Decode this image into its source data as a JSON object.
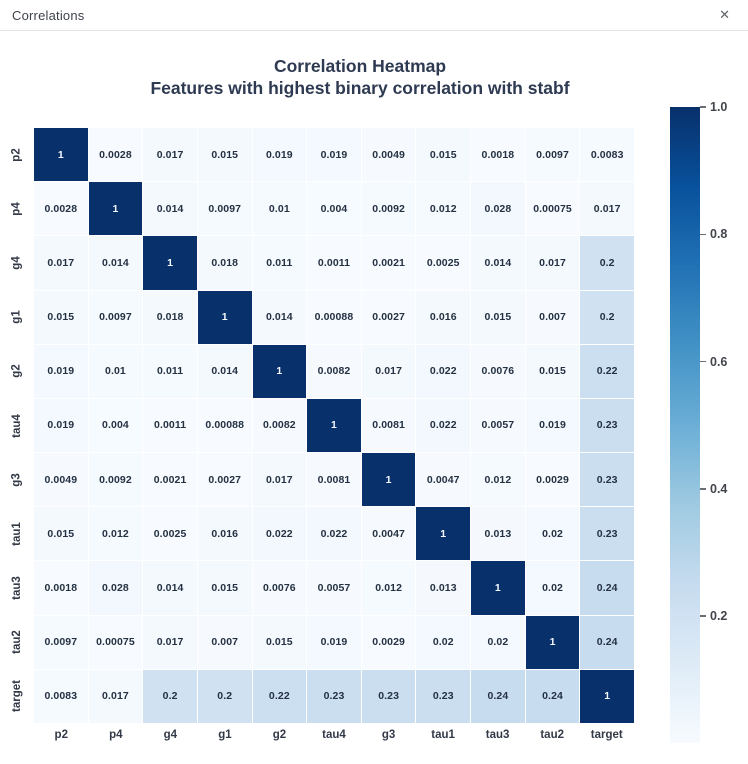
{
  "window": {
    "title": "Correlations",
    "close_glyph": "✕"
  },
  "chart_data": {
    "type": "heatmap",
    "title": "Correlation Heatmap",
    "subtitle": "Features with highest binary correlation with stabf",
    "labels": [
      "p2",
      "p4",
      "g4",
      "g1",
      "g2",
      "tau4",
      "g3",
      "tau1",
      "tau3",
      "tau2",
      "target"
    ],
    "matrix": [
      [
        "1",
        "0.0028",
        "0.017",
        "0.015",
        "0.019",
        "0.019",
        "0.0049",
        "0.015",
        "0.0018",
        "0.0097",
        "0.0083"
      ],
      [
        "0.0028",
        "1",
        "0.014",
        "0.0097",
        "0.01",
        "0.004",
        "0.0092",
        "0.012",
        "0.028",
        "0.00075",
        "0.017"
      ],
      [
        "0.017",
        "0.014",
        "1",
        "0.018",
        "0.011",
        "0.0011",
        "0.0021",
        "0.0025",
        "0.014",
        "0.017",
        "0.2"
      ],
      [
        "0.015",
        "0.0097",
        "0.018",
        "1",
        "0.014",
        "0.00088",
        "0.0027",
        "0.016",
        "0.015",
        "0.007",
        "0.2"
      ],
      [
        "0.019",
        "0.01",
        "0.011",
        "0.014",
        "1",
        "0.0082",
        "0.017",
        "0.022",
        "0.0076",
        "0.015",
        "0.22"
      ],
      [
        "0.019",
        "0.004",
        "0.0011",
        "0.00088",
        "0.0082",
        "1",
        "0.0081",
        "0.022",
        "0.0057",
        "0.019",
        "0.23"
      ],
      [
        "0.0049",
        "0.0092",
        "0.0021",
        "0.0027",
        "0.017",
        "0.0081",
        "1",
        "0.0047",
        "0.012",
        "0.0029",
        "0.23"
      ],
      [
        "0.015",
        "0.012",
        "0.0025",
        "0.016",
        "0.022",
        "0.022",
        "0.0047",
        "1",
        "0.013",
        "0.02",
        "0.23"
      ],
      [
        "0.0018",
        "0.028",
        "0.014",
        "0.015",
        "0.0076",
        "0.0057",
        "0.012",
        "0.013",
        "1",
        "0.02",
        "0.24"
      ],
      [
        "0.0097",
        "0.00075",
        "0.017",
        "0.007",
        "0.015",
        "0.019",
        "0.0029",
        "0.02",
        "0.02",
        "1",
        "0.24"
      ],
      [
        "0.0083",
        "0.017",
        "0.2",
        "0.2",
        "0.22",
        "0.23",
        "0.23",
        "0.23",
        "0.24",
        "0.24",
        "1"
      ]
    ],
    "colorbar": {
      "ticks": [
        "1.0",
        "0.8",
        "0.6",
        "0.4",
        "0.2"
      ],
      "vmin": 0.00075,
      "vmax": 1.0,
      "colorscale_name": "Blues",
      "gradient_low_to_high": [
        "#f7fbff",
        "#deebf7",
        "#c6dbef",
        "#9ecae1",
        "#6baed6",
        "#4292c6",
        "#2171b5",
        "#08519c",
        "#08306b"
      ]
    },
    "text_color_dark_cells": "#f5f9ff",
    "text_color_light_cells": "#243142",
    "legend_position": "right",
    "grid": false
  }
}
